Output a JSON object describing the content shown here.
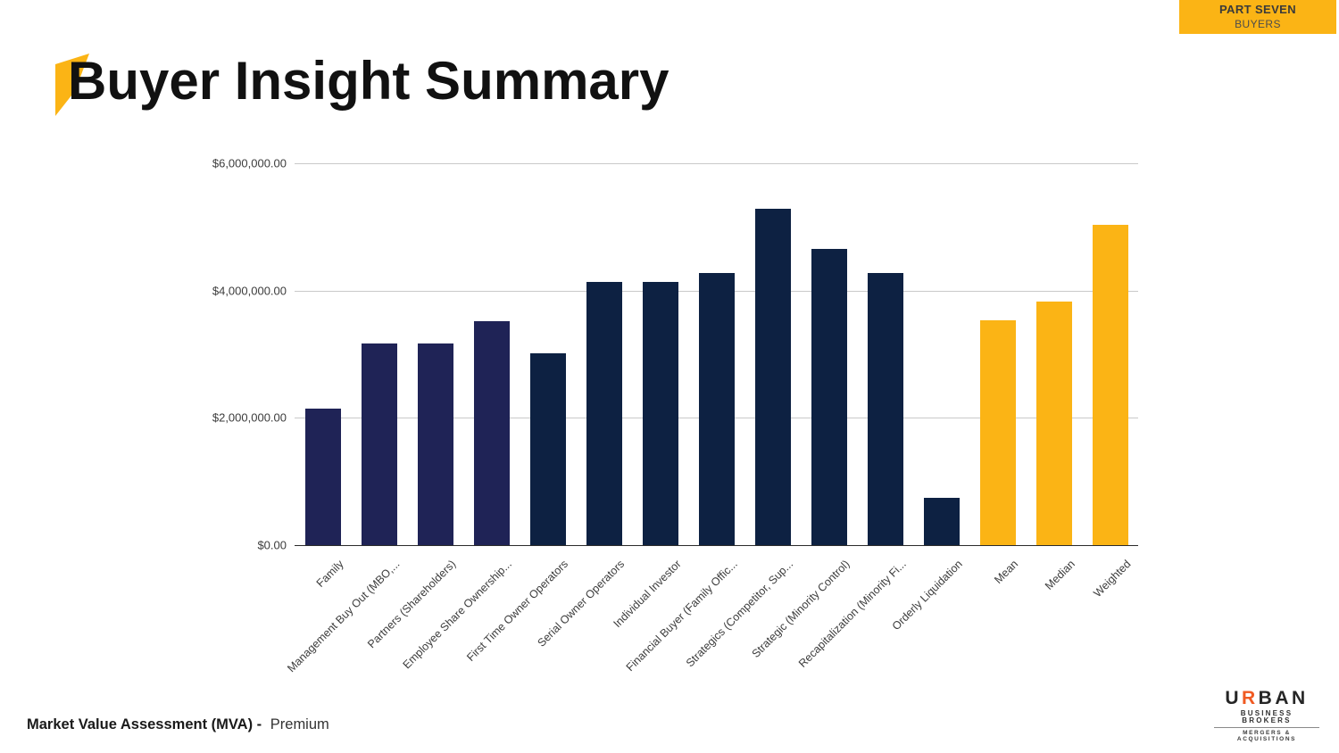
{
  "badge": {
    "line1": "PART SEVEN",
    "line2": "BUYERS"
  },
  "title": "Buyer Insight Summary",
  "footer": {
    "label_bold": "Market Value Assessment (MVA) -",
    "label_regular": "Premium"
  },
  "logo": {
    "word_pre": "U",
    "word_r": "R",
    "word_post": "BAN",
    "line2": "BUSINESS BROKERS",
    "line3": "MERGERS & ACQUISITIONS"
  },
  "colors": {
    "navy": "#1F2356",
    "dark_navy": "#0D2142",
    "amber": "#FBB415",
    "gridline": "#c9c9c9",
    "axis": "#2b2b2b"
  },
  "chart_data": {
    "type": "bar",
    "title": "",
    "xlabel": "",
    "ylabel": "",
    "ylim": [
      0,
      6000000
    ],
    "grid": true,
    "legend": "none",
    "yticks_top_to_bottom": [
      "$6,000,000.00",
      "$4,000,000.00",
      "$2,000,000.00",
      "$0.00"
    ],
    "categories": [
      "Family",
      "Management Buy Out (MBO,...",
      "Partners (Shareholders)",
      "Employee Share Ownership...",
      "First Time Owner Operators",
      "Serial Owner Operators",
      "Individual Investor",
      "Financial Buyer (Family Offic...",
      "Strategics (Competitor, Sup...",
      "Strategic (Minority Control)",
      "Recapitalization (Minority Fi...",
      "Orderly Liquidation",
      "Mean",
      "Median",
      "Weighted"
    ],
    "values": [
      2150000,
      3170000,
      3170000,
      3520000,
      3020000,
      4130000,
      4130000,
      4270000,
      5290000,
      4650000,
      4270000,
      750000,
      3530000,
      3830000,
      5030000
    ],
    "bar_color_keys": [
      "navy",
      "navy",
      "navy",
      "navy",
      "dark_navy",
      "dark_navy",
      "dark_navy",
      "dark_navy",
      "dark_navy",
      "dark_navy",
      "dark_navy",
      "dark_navy",
      "amber",
      "amber",
      "amber"
    ]
  }
}
